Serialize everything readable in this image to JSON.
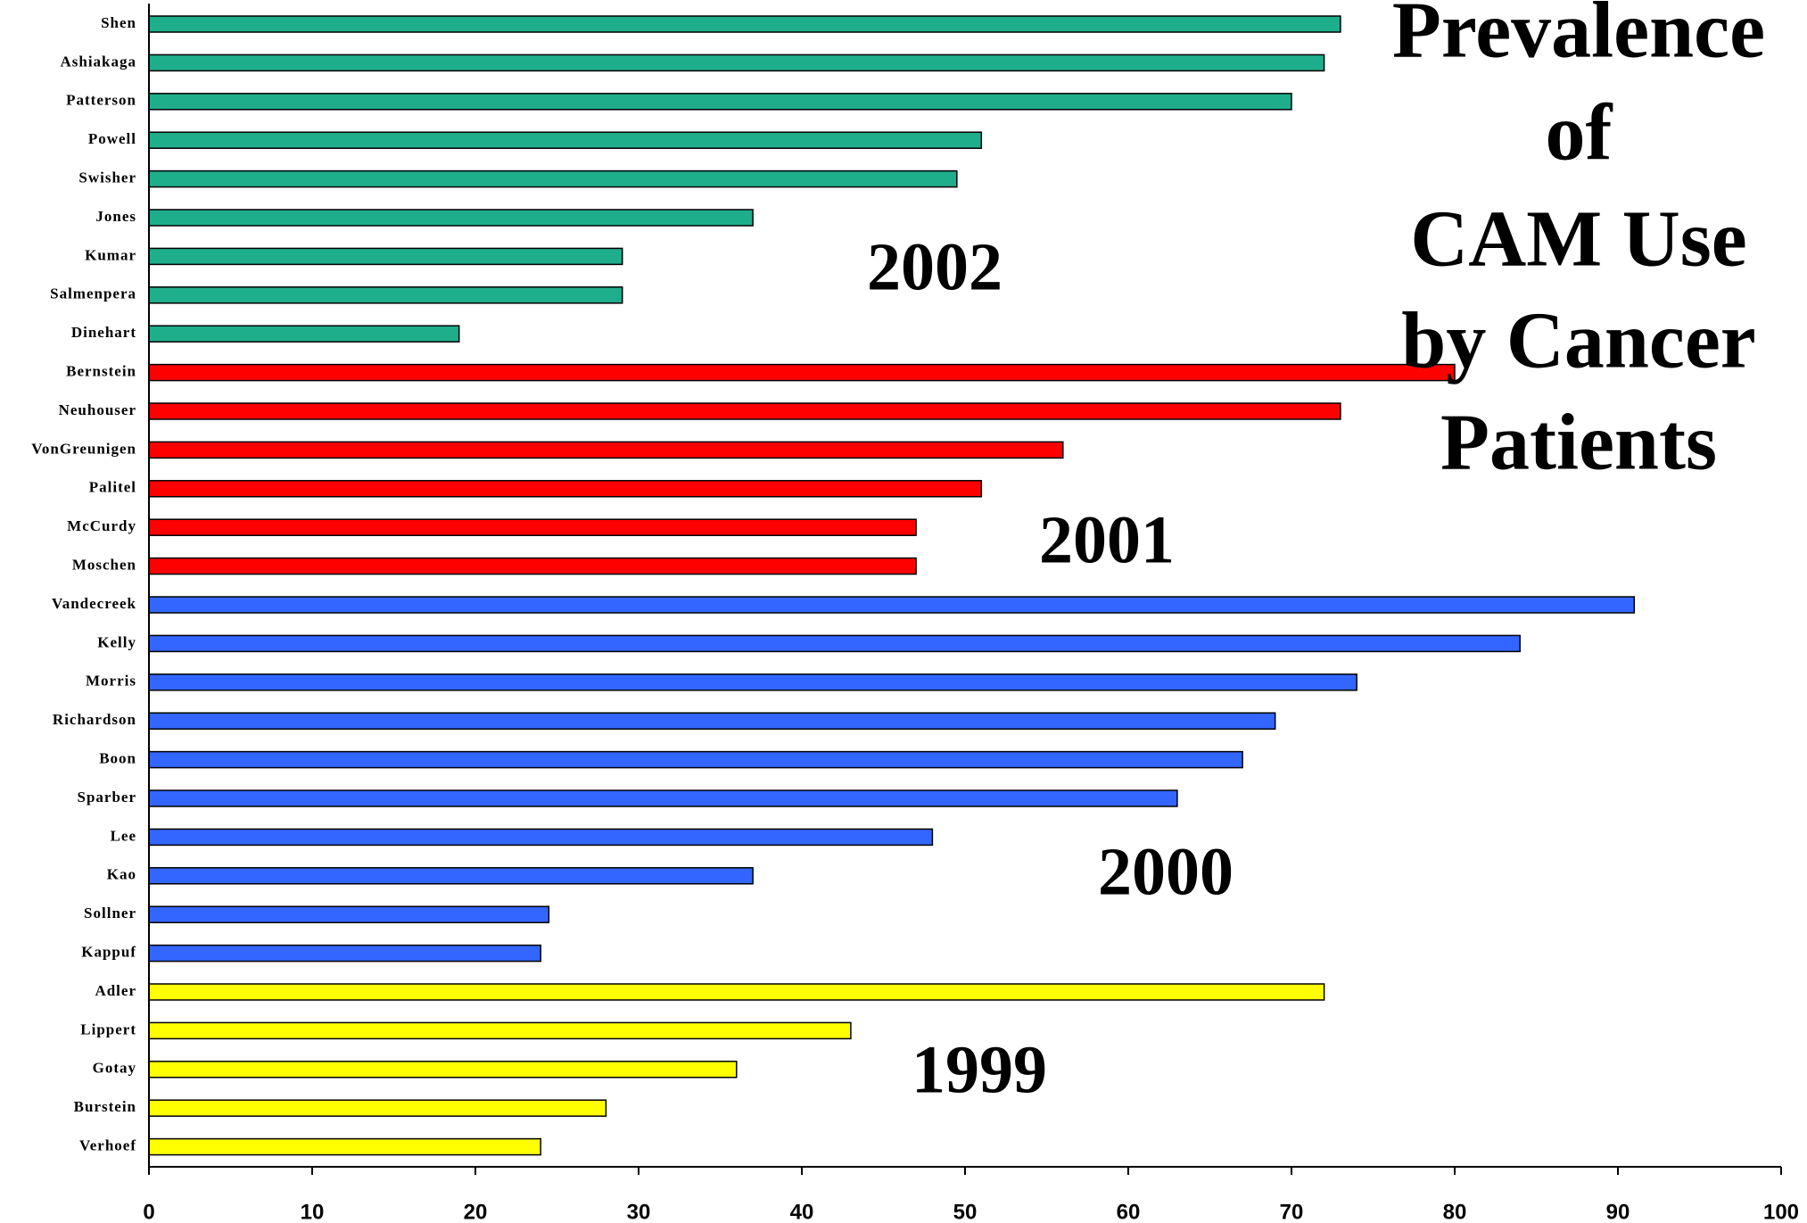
{
  "chart_data": {
    "type": "bar",
    "orientation": "horizontal",
    "title": [
      "Prevalence",
      "of",
      "CAM Use",
      "by Cancer",
      "Patients"
    ],
    "categories": [
      "Shen",
      "Ashiakaga",
      "Patterson",
      "Powell",
      "Swisher",
      "Jones",
      "Kumar",
      "Salmenpera",
      "Dinehart",
      "Bernstein",
      "Neuhouser",
      "VonGreunigen",
      "Palitel",
      "McCurdy",
      "Moschen",
      "Vandecreek",
      "Kelly",
      "Morris",
      "Richardson",
      "Boon",
      "Sparber",
      "Lee",
      "Kao",
      "Sollner",
      "Kappuf",
      "Adler",
      "Lippert",
      "Gotay",
      "Burstein",
      "Verhoef"
    ],
    "series": [
      {
        "name": "2002",
        "color": "#1fae8c",
        "values": [
          73,
          72,
          70,
          51,
          49.5,
          37,
          29,
          29,
          19,
          null,
          null,
          null,
          null,
          null,
          null,
          null,
          null,
          null,
          null,
          null,
          null,
          null,
          null,
          null,
          null,
          null,
          null,
          null,
          null,
          null
        ]
      },
      {
        "name": "2001",
        "color": "#ff0000",
        "values": [
          null,
          null,
          null,
          null,
          null,
          null,
          null,
          null,
          null,
          80,
          73,
          56,
          51,
          47,
          47,
          null,
          null,
          null,
          null,
          null,
          null,
          null,
          null,
          null,
          null,
          null,
          null,
          null,
          null,
          null
        ]
      },
      {
        "name": "2000",
        "color": "#3366ff",
        "values": [
          null,
          null,
          null,
          null,
          null,
          null,
          null,
          null,
          null,
          null,
          null,
          null,
          null,
          null,
          null,
          91,
          84,
          74,
          69,
          67,
          63,
          48,
          37,
          24.5,
          24,
          null,
          null,
          null,
          null,
          null
        ]
      },
      {
        "name": "1999",
        "color": "#ffff00",
        "values": [
          null,
          null,
          null,
          null,
          null,
          null,
          null,
          null,
          null,
          null,
          null,
          null,
          null,
          null,
          null,
          null,
          null,
          null,
          null,
          null,
          null,
          null,
          null,
          null,
          null,
          72,
          43,
          36,
          28,
          24
        ]
      }
    ],
    "xlim": [
      0,
      100
    ],
    "xticks": [
      0,
      10,
      20,
      30,
      40,
      50,
      60,
      70,
      80,
      90,
      100
    ],
    "grid": false
  }
}
